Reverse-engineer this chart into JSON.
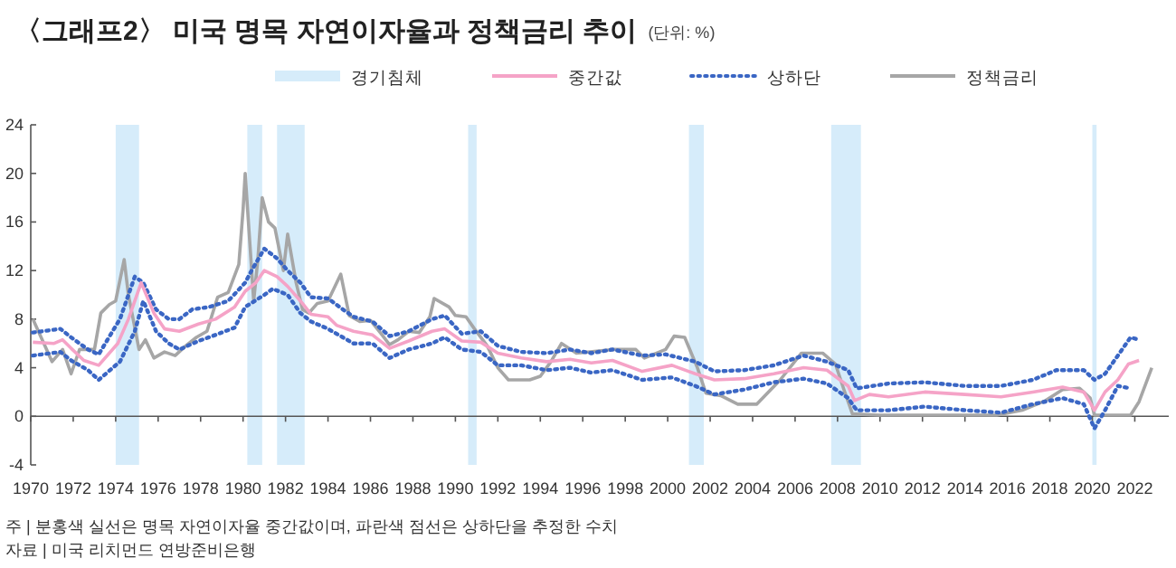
{
  "chart_data": {
    "type": "line",
    "title": "〈그래프2〉 미국 명목 자연이자율과 정책금리 추이",
    "subtitle": "(단위: %)",
    "annotations": [
      "주 | 분홍색 실선은 명목 자연이자율 중간값이며, 파란색 점선은 상하단을 추정한 수치",
      "자료 | 미국 리치먼드 연방준비은행"
    ],
    "xlim": [
      1970,
      2023.6
    ],
    "xticks": [
      1970,
      1972,
      1974,
      1976,
      1978,
      1980,
      1982,
      1984,
      1986,
      1988,
      1990,
      1992,
      1994,
      1996,
      1998,
      2000,
      2002,
      2004,
      2006,
      2008,
      2010,
      2012,
      2014,
      2016,
      2018,
      2020,
      2022
    ],
    "ylim": [
      -4,
      24
    ],
    "yticks": [
      -4,
      0,
      4,
      8,
      12,
      16,
      20,
      24
    ],
    "legend": "top",
    "bands": [
      {
        "axis": "x",
        "from": 1974.0,
        "to": 1975.1,
        "label": "경기침체",
        "color": "#d6ecfa"
      },
      {
        "axis": "x",
        "from": 1980.2,
        "to": 1980.9,
        "color": "#d6ecfa"
      },
      {
        "axis": "x",
        "from": 1981.6,
        "to": 1982.9,
        "color": "#d6ecfa"
      },
      {
        "axis": "x",
        "from": 1990.6,
        "to": 1991.0,
        "color": "#d6ecfa"
      },
      {
        "axis": "x",
        "from": 2001.0,
        "to": 2001.7,
        "color": "#d6ecfa"
      },
      {
        "axis": "x",
        "from": 2007.7,
        "to": 2009.1,
        "color": "#d6ecfa"
      },
      {
        "axis": "x",
        "from": 2020.0,
        "to": 2020.2,
        "color": "#d6ecfa"
      }
    ],
    "series": [
      {
        "name": "정책금리",
        "color": "#a6a6a6",
        "line_style": "solid",
        "x": [
          1970.1,
          1971.0,
          1971.5,
          1971.9,
          1972.3,
          1973.0,
          1973.3,
          1973.7,
          1974.0,
          1974.4,
          1974.6,
          1975.1,
          1975.4,
          1975.8,
          1976.3,
          1976.8,
          1977.3,
          1977.8,
          1978.3,
          1978.8,
          1979.3,
          1979.8,
          1980.0,
          1980.1,
          1980.5,
          1980.7,
          1980.9,
          1981.2,
          1981.5,
          1981.9,
          1982.1,
          1982.5,
          1982.8,
          1983.1,
          1983.5,
          1984.0,
          1984.6,
          1985.0,
          1985.5,
          1986.0,
          1986.5,
          1986.9,
          1987.3,
          1987.8,
          1988.3,
          1988.8,
          1989.0,
          1989.7,
          1990.0,
          1990.5,
          1990.9,
          1991.5,
          1992.0,
          1992.5,
          1993.0,
          1993.5,
          1994.0,
          1994.5,
          1995.0,
          1995.7,
          1997.4,
          1998.5,
          1998.9,
          1999.9,
          2000.3,
          2000.8,
          2001.4,
          2001.8,
          2002.5,
          2003.3,
          2004.2,
          2005.3,
          2006.3,
          2007.3,
          2007.9,
          2008.3,
          2008.7,
          2009.9,
          2015.5,
          2016.7,
          2017.8,
          2018.6,
          2019.4,
          2019.9,
          2020.1,
          2021.8,
          2022.2,
          2022.8
        ],
        "values": [
          8.0,
          4.5,
          5.5,
          3.5,
          5.5,
          5.5,
          8.5,
          9.2,
          9.5,
          12.9,
          10.0,
          5.5,
          6.3,
          4.8,
          5.3,
          5.0,
          5.8,
          6.5,
          7.0,
          9.8,
          10.2,
          12.5,
          17.0,
          20.0,
          9.5,
          13.0,
          18.0,
          16.0,
          15.5,
          12.0,
          15.0,
          11.0,
          8.8,
          8.5,
          9.3,
          9.5,
          11.7,
          8.3,
          7.8,
          7.9,
          6.8,
          5.9,
          6.3,
          7.0,
          6.9,
          8.2,
          9.7,
          9.0,
          8.3,
          8.2,
          7.2,
          5.8,
          4.0,
          3.0,
          3.0,
          3.0,
          3.3,
          4.5,
          6.0,
          5.2,
          5.5,
          5.5,
          4.8,
          5.5,
          6.6,
          6.5,
          4.0,
          1.9,
          1.7,
          1.0,
          1.0,
          3.0,
          5.2,
          5.2,
          4.3,
          2.2,
          0.2,
          0.1,
          0.1,
          0.5,
          1.3,
          2.2,
          2.3,
          1.5,
          0.1,
          0.1,
          1.2,
          4.0
        ]
      },
      {
        "name": "상하단",
        "color": "#3a66c4",
        "line_style": "dotted",
        "x": [
          1970.1,
          1971.4,
          1971.9,
          1972.7,
          1973.2,
          1974.2,
          1974.9,
          1975.3,
          1975.9,
          1976.5,
          1977.0,
          1977.6,
          1978.4,
          1979.3,
          1980.1,
          1980.4,
          1981.0,
          1981.6,
          1982.1,
          1982.7,
          1983.2,
          1984.0,
          1984.7,
          1985.2,
          1986.1,
          1986.9,
          1987.8,
          1988.9,
          1989.5,
          1990.3,
          1991.2,
          1992.0,
          1993.1,
          1994.3,
          1995.4,
          1996.4,
          1997.4,
          1998.8,
          1999.9,
          2001.3,
          2002.2,
          2003.6,
          2005.0,
          2006.4,
          2007.5,
          2008.5,
          2008.9,
          2010.4,
          2012.1,
          2014.0,
          2015.7,
          2017.2,
          2018.3,
          2019.6,
          2020.1,
          2020.6,
          2021.2,
          2021.8,
          2022.2
        ],
        "values": [
          6.9,
          7.2,
          6.5,
          5.5,
          5.1,
          8.0,
          11.5,
          11.0,
          8.8,
          8.0,
          8.0,
          8.8,
          9.0,
          9.5,
          11.0,
          12.0,
          13.8,
          13.0,
          12.0,
          11.0,
          9.8,
          9.7,
          8.8,
          8.2,
          7.8,
          6.6,
          7.0,
          8.0,
          8.3,
          6.8,
          7.0,
          5.8,
          5.3,
          5.2,
          5.5,
          5.2,
          5.5,
          5.0,
          5.1,
          4.5,
          3.7,
          3.8,
          4.2,
          5.0,
          4.5,
          3.8,
          2.3,
          2.7,
          2.8,
          2.5,
          2.5,
          3.0,
          3.8,
          3.8,
          3.0,
          3.5,
          5.0,
          6.5,
          6.3
        ]
      },
      {
        "color": "#3a66c4",
        "line_style": "dotted",
        "x": [
          1970.1,
          1971.4,
          1971.9,
          1972.7,
          1973.2,
          1974.2,
          1974.9,
          1975.3,
          1975.9,
          1976.5,
          1977.0,
          1977.9,
          1978.7,
          1979.6,
          1980.1,
          1981.0,
          1981.4,
          1982.1,
          1982.7,
          1983.2,
          1984.0,
          1984.7,
          1985.2,
          1986.1,
          1986.9,
          1987.8,
          1988.9,
          1989.5,
          1990.3,
          1991.2,
          1992.0,
          1993.1,
          1994.3,
          1995.4,
          1996.4,
          1997.4,
          1998.8,
          2000.2,
          2001.3,
          2002.2,
          2003.6,
          2005.0,
          2006.4,
          2007.5,
          2008.5,
          2008.9,
          2010.4,
          2012.1,
          2014.0,
          2015.7,
          2017.2,
          2018.6,
          2019.6,
          2020.1,
          2020.6,
          2021.2,
          2021.8
        ],
        "values": [
          5.0,
          5.3,
          4.6,
          3.8,
          3.0,
          4.5,
          7.0,
          9.5,
          7.0,
          6.0,
          5.5,
          6.2,
          6.7,
          7.3,
          9.0,
          10.0,
          10.5,
          10.0,
          8.5,
          7.8,
          7.2,
          6.5,
          6.0,
          6.0,
          4.8,
          5.5,
          6.0,
          6.5,
          5.5,
          5.3,
          4.2,
          4.2,
          3.8,
          4.0,
          3.6,
          3.8,
          3.0,
          3.2,
          2.5,
          1.8,
          2.2,
          2.8,
          3.1,
          2.7,
          1.5,
          0.5,
          0.5,
          0.8,
          0.5,
          0.3,
          1.0,
          1.5,
          1.0,
          -1.0,
          0.5,
          2.5,
          2.3
        ]
      },
      {
        "name": "중간값",
        "color": "#f5a3c7",
        "line_style": "solid",
        "x": [
          1970.1,
          1971.1,
          1971.5,
          1971.9,
          1972.5,
          1973.2,
          1974.1,
          1974.6,
          1975.2,
          1975.8,
          1976.3,
          1977.0,
          1977.9,
          1978.7,
          1979.6,
          1980.1,
          1980.6,
          1981.0,
          1981.6,
          1982.1,
          1982.7,
          1983.2,
          1984.0,
          1984.4,
          1985.2,
          1986.1,
          1986.9,
          1987.8,
          1988.9,
          1989.5,
          1990.3,
          1991.2,
          1992.0,
          1993.1,
          1994.3,
          1995.4,
          1996.4,
          1997.4,
          1998.8,
          2000.2,
          2001.3,
          2002.2,
          2003.6,
          2005.0,
          2006.4,
          2007.5,
          2008.5,
          2008.8,
          2009.5,
          2010.4,
          2012.1,
          2014.0,
          2015.7,
          2017.2,
          2018.6,
          2019.6,
          2020.1,
          2020.6,
          2021.2,
          2021.7,
          2022.2
        ],
        "values": [
          6.1,
          6.0,
          6.3,
          5.6,
          4.6,
          4.2,
          6.0,
          8.0,
          11.0,
          8.5,
          7.2,
          7.0,
          7.6,
          8.0,
          9.0,
          10.3,
          11.0,
          12.0,
          11.5,
          10.7,
          9.5,
          8.4,
          8.2,
          7.5,
          7.0,
          6.7,
          5.6,
          6.2,
          7.0,
          7.2,
          6.2,
          6.1,
          5.2,
          4.8,
          4.5,
          4.7,
          4.4,
          4.6,
          3.7,
          4.2,
          3.5,
          3.0,
          3.1,
          3.5,
          4.0,
          3.8,
          2.5,
          1.3,
          1.8,
          1.6,
          2.0,
          1.8,
          1.6,
          2.0,
          2.4,
          2.0,
          0.5,
          2.0,
          3.0,
          4.3,
          4.6
        ]
      }
    ]
  }
}
